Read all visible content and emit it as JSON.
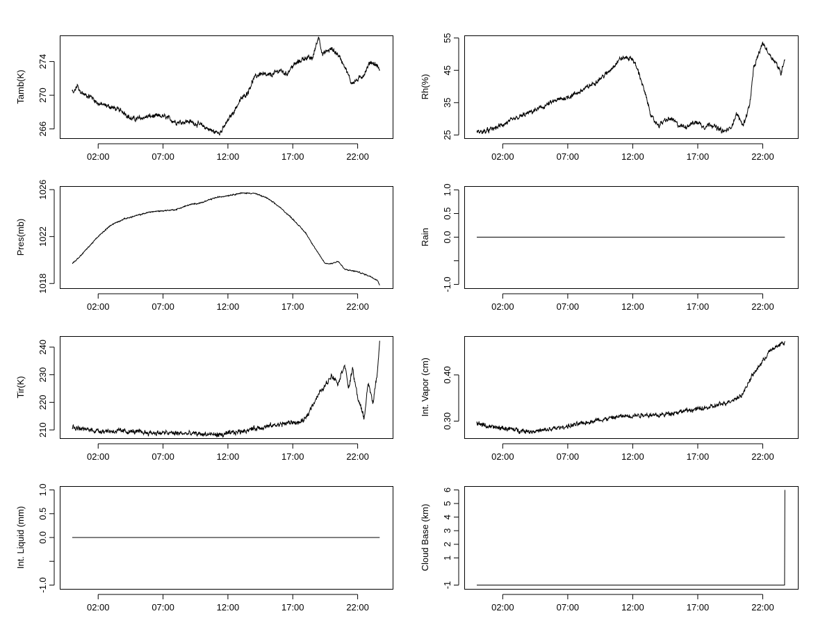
{
  "chart_data": [
    {
      "type": "line",
      "ylabel": "Tamb(K)",
      "x_ticks": [
        "02:00",
        "07:00",
        "12:00",
        "17:00",
        "22:00"
      ],
      "y_ticks": [
        266,
        270,
        274
      ],
      "ylim": [
        264.9,
        277.1
      ],
      "keypoints": [
        [
          0,
          270.5
        ],
        [
          0.1,
          270.2
        ],
        [
          0.4,
          271.2
        ],
        [
          0.5,
          270.6
        ],
        [
          1.0,
          270.0
        ],
        [
          1.5,
          269.8
        ],
        [
          2.0,
          269.0
        ],
        [
          3.0,
          268.6
        ],
        [
          4.0,
          268.0
        ],
        [
          4.5,
          267.2
        ],
        [
          5.0,
          267.2
        ],
        [
          6.0,
          267.5
        ],
        [
          7.0,
          267.5
        ],
        [
          7.5,
          267.2
        ],
        [
          8.0,
          266.8
        ],
        [
          9.0,
          266.9
        ],
        [
          10.0,
          266.4
        ],
        [
          11.0,
          265.6
        ],
        [
          11.5,
          265.7
        ],
        [
          12.0,
          267.0
        ],
        [
          12.5,
          268.2
        ],
        [
          13.0,
          269.5
        ],
        [
          13.5,
          270.3
        ],
        [
          14.0,
          272.0
        ],
        [
          14.5,
          272.6
        ],
        [
          15.0,
          272.3
        ],
        [
          15.5,
          272.5
        ],
        [
          16.0,
          273.0
        ],
        [
          16.5,
          272.5
        ],
        [
          17.0,
          273.5
        ],
        [
          17.5,
          274.0
        ],
        [
          18.0,
          274.5
        ],
        [
          18.5,
          274.3
        ],
        [
          19.0,
          277.0
        ],
        [
          19.3,
          274.8
        ],
        [
          19.6,
          275.2
        ],
        [
          20.0,
          275.5
        ],
        [
          20.5,
          274.8
        ],
        [
          21.0,
          273.5
        ],
        [
          21.5,
          271.5
        ],
        [
          22.0,
          271.8
        ],
        [
          22.5,
          272.5
        ],
        [
          23.0,
          274.0
        ],
        [
          23.5,
          273.5
        ],
        [
          23.7,
          273.0
        ]
      ],
      "noise": 0.35
    },
    {
      "type": "line",
      "ylabel": "Rh(%)",
      "x_ticks": [
        "02:00",
        "07:00",
        "12:00",
        "17:00",
        "22:00"
      ],
      "y_ticks": [
        25,
        35,
        45,
        55
      ],
      "ylim": [
        24.0,
        55.8
      ],
      "keypoints": [
        [
          0,
          26
        ],
        [
          0.5,
          26.0
        ],
        [
          1.0,
          26.5
        ],
        [
          1.5,
          27.3
        ],
        [
          2.0,
          28.2
        ],
        [
          3.0,
          30.0
        ],
        [
          4.0,
          31.8
        ],
        [
          5.0,
          33.5
        ],
        [
          6.0,
          35.5
        ],
        [
          7.0,
          36.7
        ],
        [
          8.0,
          38.5
        ],
        [
          9.0,
          41.0
        ],
        [
          10.0,
          44.0
        ],
        [
          11.0,
          48.5
        ],
        [
          11.5,
          49.0
        ],
        [
          12.0,
          48.5
        ],
        [
          12.5,
          44.0
        ],
        [
          13.0,
          37.0
        ],
        [
          13.5,
          30.0
        ],
        [
          14.0,
          28.0
        ],
        [
          14.5,
          29.5
        ],
        [
          15.0,
          30.0
        ],
        [
          15.5,
          28.0
        ],
        [
          16.0,
          27.5
        ],
        [
          16.5,
          28.5
        ],
        [
          17.0,
          29.0
        ],
        [
          17.5,
          27.5
        ],
        [
          18.0,
          28.5
        ],
        [
          18.5,
          27.0
        ],
        [
          19.0,
          26.0
        ],
        [
          19.5,
          27.0
        ],
        [
          20.0,
          31.5
        ],
        [
          20.5,
          28.0
        ],
        [
          21.0,
          34.5
        ],
        [
          21.3,
          45.5
        ],
        [
          21.6,
          49.0
        ],
        [
          22.0,
          53.5
        ],
        [
          22.5,
          50.0
        ],
        [
          23.0,
          47.5
        ],
        [
          23.4,
          44.0
        ],
        [
          23.7,
          49.0
        ]
      ],
      "noise": 0.9
    },
    {
      "type": "line",
      "ylabel": "Pres(mb)",
      "x_ticks": [
        "02:00",
        "07:00",
        "12:00",
        "17:00",
        "22:00"
      ],
      "y_ticks": [
        1018,
        1022,
        1026
      ],
      "ylim": [
        1017.6,
        1026.3
      ],
      "keypoints": [
        [
          0,
          1019.7
        ],
        [
          0.5,
          1020.2
        ],
        [
          1.0,
          1020.8
        ],
        [
          2.0,
          1022.0
        ],
        [
          3.0,
          1023.0
        ],
        [
          4.0,
          1023.5
        ],
        [
          5.0,
          1023.8
        ],
        [
          6.0,
          1024.1
        ],
        [
          7.0,
          1024.2
        ],
        [
          8.0,
          1024.3
        ],
        [
          9.0,
          1024.7
        ],
        [
          10.0,
          1024.9
        ],
        [
          11.0,
          1025.3
        ],
        [
          12.0,
          1025.5
        ],
        [
          13.0,
          1025.7
        ],
        [
          14.0,
          1025.7
        ],
        [
          15.0,
          1025.3
        ],
        [
          16.0,
          1024.5
        ],
        [
          17.0,
          1023.5
        ],
        [
          18.0,
          1022.3
        ],
        [
          19.0,
          1020.5
        ],
        [
          19.5,
          1019.7
        ],
        [
          20.0,
          1019.7
        ],
        [
          20.5,
          1019.9
        ],
        [
          21.0,
          1019.2
        ],
        [
          22.0,
          1019.0
        ],
        [
          23.0,
          1018.6
        ],
        [
          23.5,
          1018.3
        ],
        [
          23.7,
          1017.9
        ]
      ],
      "noise": 0.06
    },
    {
      "type": "line",
      "ylabel": "Rain",
      "x_ticks": [
        "02:00",
        "07:00",
        "12:00",
        "17:00",
        "22:00"
      ],
      "y_ticks": [
        -1.0,
        -0.5,
        0.0,
        0.5,
        1.0
      ],
      "y_tick_labels": [
        "-1.0",
        "",
        "0.0",
        "0.5",
        "1.0"
      ],
      "ylim": [
        -1.08,
        1.08
      ],
      "keypoints": [
        [
          0,
          0
        ],
        [
          23.7,
          0
        ]
      ],
      "noise": 0
    },
    {
      "type": "line",
      "ylabel": "Tir(K)",
      "x_ticks": [
        "02:00",
        "07:00",
        "12:00",
        "17:00",
        "22:00"
      ],
      "y_ticks": [
        210,
        220,
        230,
        240
      ],
      "ylim": [
        207.0,
        244.0
      ],
      "keypoints": [
        [
          0,
          211.0
        ],
        [
          1.0,
          210.2
        ],
        [
          2.0,
          209.7
        ],
        [
          4.0,
          209.5
        ],
        [
          6.0,
          209.0
        ],
        [
          8.0,
          208.8
        ],
        [
          10.0,
          208.5
        ],
        [
          11.5,
          208.2
        ],
        [
          12.0,
          208.6
        ],
        [
          13.0,
          209.5
        ],
        [
          14.0,
          210.5
        ],
        [
          15.0,
          211.2
        ],
        [
          16.0,
          212.0
        ],
        [
          17.0,
          212.8
        ],
        [
          17.5,
          212.5
        ],
        [
          18.0,
          214.0
        ],
        [
          18.5,
          219.0
        ],
        [
          19.0,
          223.0
        ],
        [
          19.5,
          226.0
        ],
        [
          20.0,
          230.0
        ],
        [
          20.5,
          227.0
        ],
        [
          21.0,
          234.0
        ],
        [
          21.3,
          225.0
        ],
        [
          21.6,
          232.0
        ],
        [
          22.0,
          222.0
        ],
        [
          22.5,
          214.0
        ],
        [
          22.8,
          227.0
        ],
        [
          23.2,
          220.0
        ],
        [
          23.5,
          230.0
        ],
        [
          23.7,
          242.5
        ]
      ],
      "noise": 1.1
    },
    {
      "type": "line",
      "ylabel": "Int. Vapor (cm)",
      "x_ticks": [
        "02:00",
        "07:00",
        "12:00",
        "17:00",
        "22:00"
      ],
      "y_ticks": [
        0.3,
        0.4
      ],
      "y_tick_labels": [
        "0.30",
        "0.40"
      ],
      "ylim": [
        0.263,
        0.484
      ],
      "keypoints": [
        [
          0,
          0.296
        ],
        [
          1.0,
          0.287
        ],
        [
          2.0,
          0.285
        ],
        [
          3.0,
          0.281
        ],
        [
          4.0,
          0.278
        ],
        [
          5.0,
          0.279
        ],
        [
          6.0,
          0.284
        ],
        [
          7.0,
          0.289
        ],
        [
          8.0,
          0.294
        ],
        [
          9.0,
          0.301
        ],
        [
          10.0,
          0.305
        ],
        [
          11.0,
          0.31
        ],
        [
          12.0,
          0.312
        ],
        [
          13.0,
          0.314
        ],
        [
          14.0,
          0.312
        ],
        [
          15.0,
          0.318
        ],
        [
          16.0,
          0.322
        ],
        [
          17.0,
          0.326
        ],
        [
          18.0,
          0.33
        ],
        [
          19.0,
          0.338
        ],
        [
          20.0,
          0.35
        ],
        [
          20.5,
          0.36
        ],
        [
          21.0,
          0.39
        ],
        [
          21.5,
          0.41
        ],
        [
          22.0,
          0.43
        ],
        [
          22.5,
          0.45
        ],
        [
          23.0,
          0.46
        ],
        [
          23.4,
          0.468
        ],
        [
          23.7,
          0.47
        ]
      ],
      "noise": 0.006
    },
    {
      "type": "line",
      "ylabel": "Int. Liquid (mm)",
      "x_ticks": [
        "02:00",
        "07:00",
        "12:00",
        "17:00",
        "22:00"
      ],
      "y_ticks": [
        -1.0,
        -0.5,
        0.0,
        0.5,
        1.0
      ],
      "y_tick_labels": [
        "-1.0",
        "",
        "0.0",
        "0.5",
        "1.0"
      ],
      "ylim": [
        -1.08,
        1.08
      ],
      "keypoints": [
        [
          0,
          0
        ],
        [
          23.7,
          0
        ]
      ],
      "noise": 0
    },
    {
      "type": "line",
      "ylabel": "Cloud Base (km)",
      "x_ticks": [
        "02:00",
        "07:00",
        "12:00",
        "17:00",
        "22:00"
      ],
      "y_ticks": [
        -1,
        1,
        2,
        3,
        4,
        5,
        6
      ],
      "y_tick_labels": [
        "-1",
        "1",
        "2",
        "3",
        "4",
        "5",
        "6"
      ],
      "ylim": [
        -1.28,
        6.28
      ],
      "keypoints": [
        [
          0,
          -1
        ],
        [
          23.68,
          -1
        ],
        [
          23.7,
          6
        ]
      ],
      "noise": 0
    }
  ]
}
